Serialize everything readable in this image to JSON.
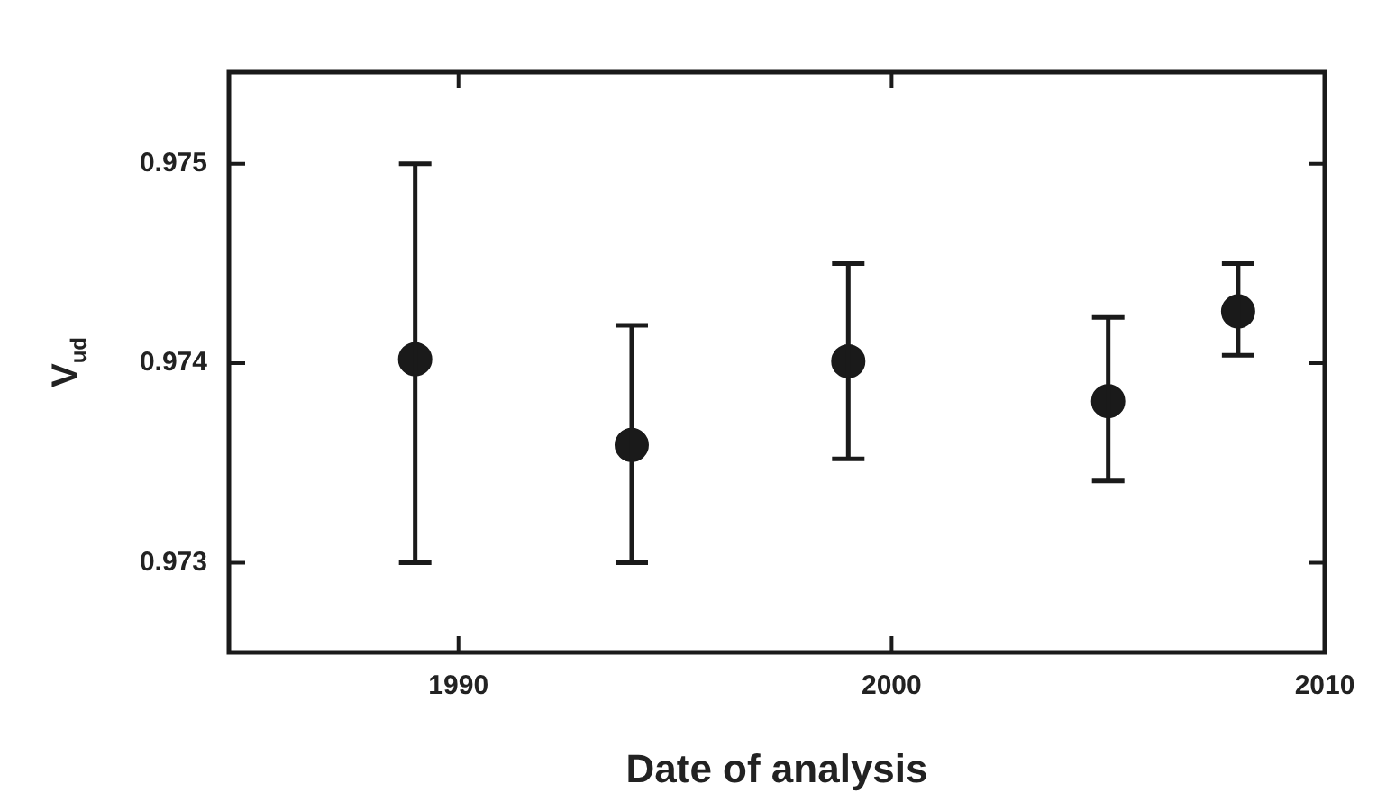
{
  "chart_data": {
    "type": "scatter",
    "xlabel": "Date of analysis",
    "ylabel": "V$_{ud}$",
    "x": [
      1989,
      1994,
      1999,
      2005,
      2008
    ],
    "values": [
      0.97402,
      0.97359,
      0.97401,
      0.97381,
      0.97426
    ],
    "errors": [
      [
        0.973,
        0.975
      ],
      [
        0.973,
        0.97419
      ],
      [
        0.97352,
        0.9745
      ],
      [
        0.97341,
        0.97423
      ],
      [
        0.97404,
        0.9745
      ]
    ],
    "color": "#1a1a1a",
    "marker": "circle",
    "xlim": [
      1984.7,
      2010
    ],
    "xticks": [
      1990,
      2000,
      2010
    ],
    "ylim": [
      0.97255,
      0.97546
    ],
    "yticks": [
      0.973,
      0.974,
      0.975
    ],
    "grid": false,
    "legend": false
  }
}
